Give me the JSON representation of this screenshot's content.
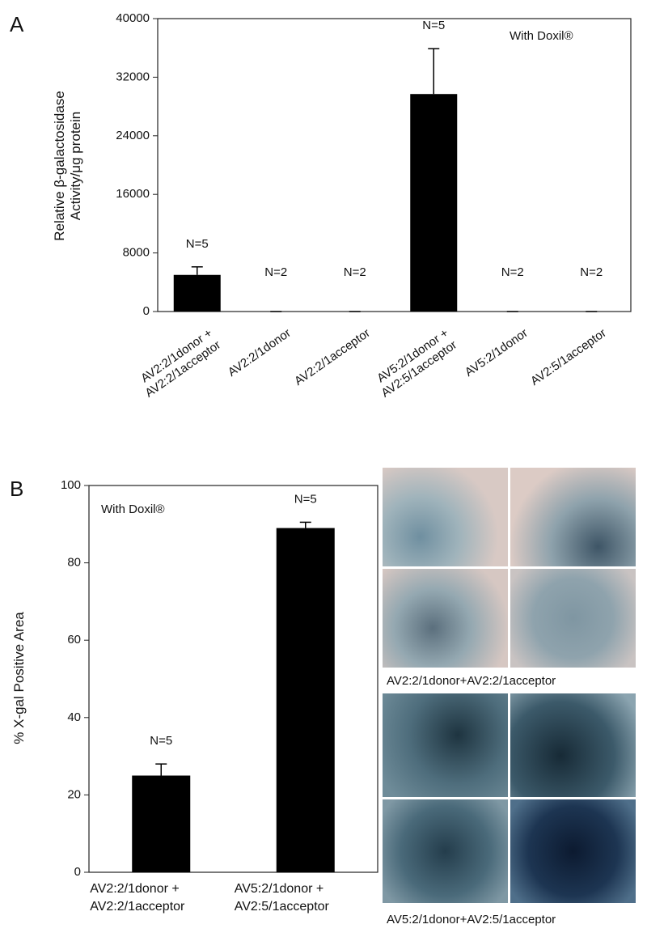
{
  "panel_labels": [
    "A",
    "B"
  ],
  "chart_data": [
    {
      "type": "bar",
      "y_label": "Relative β-galactosidase\nActivity/μg protein",
      "annotation": "With  Doxil®",
      "categories": [
        "AV2:2/1donor +\nAV2:2/1acceptor",
        "AV2:2/1donor",
        "AV2:2/1acceptor",
        "AV5:2/1donor +\nAV2:5/1acceptor",
        "AV5:2/1donor",
        "AV2:5/1acceptor"
      ],
      "values": [
        5000,
        0,
        0,
        29700,
        0,
        0
      ],
      "errors": [
        1100,
        0,
        0,
        6200,
        0,
        0
      ],
      "n_labels": [
        "N=5",
        "N=2",
        "N=2",
        "N=5",
        "N=2",
        "N=2"
      ],
      "color": "#000000",
      "ylim": [
        0,
        40000
      ],
      "yticks": [
        0,
        8000,
        16000,
        24000,
        32000,
        40000
      ]
    },
    {
      "type": "bar",
      "y_label": "% X-gal Positive Area",
      "annotation": "With  Doxil®",
      "categories": [
        "AV2:2/1donor +\nAV2:2/1acceptor",
        "AV5:2/1donor +\nAV2:5/1acceptor"
      ],
      "values": [
        25,
        89
      ],
      "errors": [
        3,
        1.5
      ],
      "n_labels": [
        "N=5",
        "N=5"
      ],
      "color": "#000000",
      "ylim": [
        0,
        100
      ],
      "yticks": [
        0,
        20,
        40,
        60,
        80,
        100
      ]
    }
  ],
  "micrographs": [
    {
      "caption": "AV2:2/1donor+AV2:2/1acceptor"
    },
    {
      "caption": "AV5:2/1donor+AV2:5/1acceptor"
    }
  ]
}
